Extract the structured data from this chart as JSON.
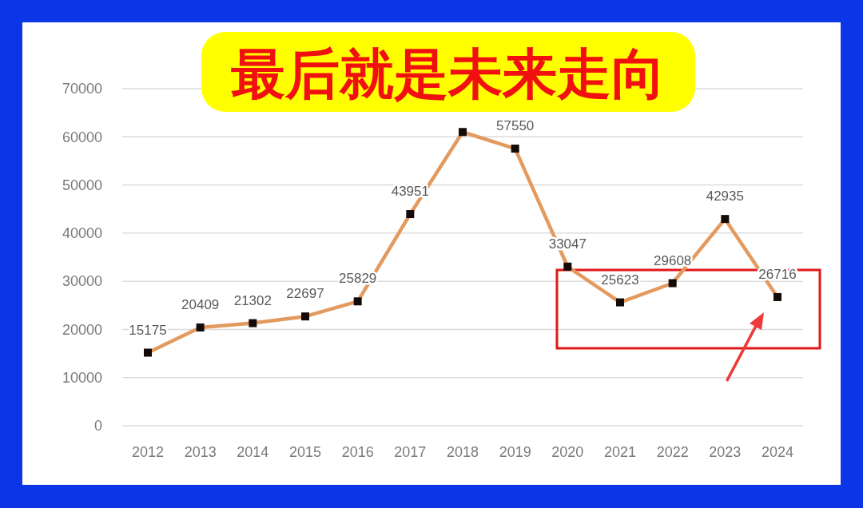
{
  "chart_data": {
    "type": "line",
    "title": "最后就是未来走向",
    "categories": [
      "2012",
      "2013",
      "2014",
      "2015",
      "2016",
      "2017",
      "2018",
      "2019",
      "2020",
      "2021",
      "2022",
      "2023",
      "2024"
    ],
    "series": [
      {
        "color": "#e39a5f",
        "values": [
          15175,
          20409,
          21302,
          22697,
          25829,
          43951,
          61000,
          57550,
          33047,
          25623,
          29608,
          42935,
          26716
        ],
        "value_labels": [
          "15175",
          "20409",
          "21302",
          "22697",
          "25829",
          "43951",
          null,
          "57550",
          "33047",
          "25623",
          "29608",
          "42935",
          "26716"
        ]
      }
    ],
    "ylim": [
      0,
      70000
    ],
    "yticks": [
      0,
      10000,
      20000,
      30000,
      40000,
      50000,
      60000,
      70000
    ],
    "grid": "y",
    "marker": "square",
    "line_style": "solid"
  }
}
